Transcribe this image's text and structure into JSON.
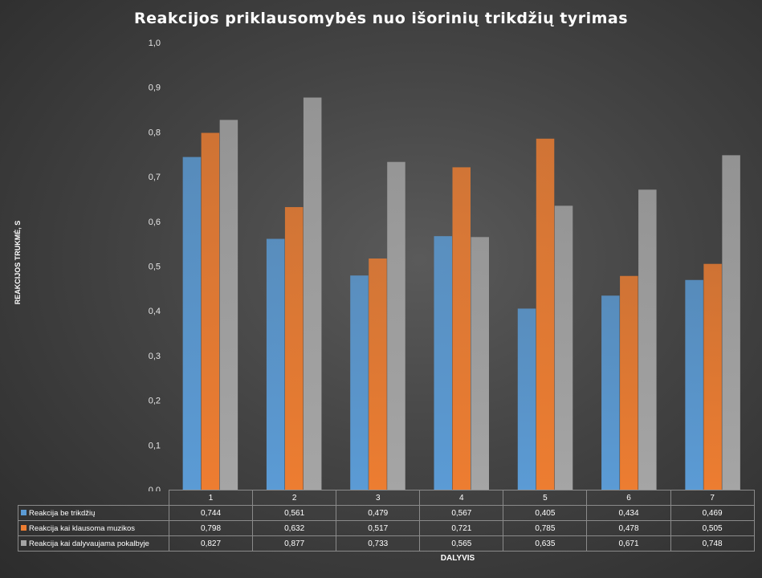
{
  "chart_data": {
    "type": "bar",
    "title": "Reakcijos priklausomybės nuo išorinių trikdžių tyrimas",
    "xlabel": "DALYVIS",
    "ylabel": "REAKCIJOS TRUKMĖ, S",
    "ylim": [
      0,
      1.0
    ],
    "yticks": [
      "0,0",
      "0,1",
      "0,2",
      "0,3",
      "0,4",
      "0,5",
      "0,6",
      "0,7",
      "0,8",
      "0,9",
      "1,0"
    ],
    "categories": [
      "1",
      "2",
      "3",
      "4",
      "5",
      "6",
      "7"
    ],
    "grid": false,
    "legend": "data-table",
    "series": [
      {
        "name": "Reakcija be trikdžių",
        "color": "#5b9bd5",
        "values": [
          0.744,
          0.561,
          0.479,
          0.567,
          0.405,
          0.434,
          0.469
        ],
        "labels": [
          "0,744",
          "0,561",
          "0,479",
          "0,567",
          "0,405",
          "0,434",
          "0,469"
        ]
      },
      {
        "name": "Reakcija kai klausoma muzikos",
        "color": "#ed7d31",
        "values": [
          0.798,
          0.632,
          0.517,
          0.721,
          0.785,
          0.478,
          0.505
        ],
        "labels": [
          "0,798",
          "0,632",
          "0,517",
          "0,721",
          "0,785",
          "0,478",
          "0,505"
        ]
      },
      {
        "name": "Reakcija kai dalyvaujama pokalbyje",
        "color": "#a5a5a5",
        "values": [
          0.827,
          0.877,
          0.733,
          0.565,
          0.635,
          0.671,
          0.748
        ],
        "labels": [
          "0,827",
          "0,877",
          "0,733",
          "0,565",
          "0,635",
          "0,671",
          "0,748"
        ]
      }
    ]
  }
}
